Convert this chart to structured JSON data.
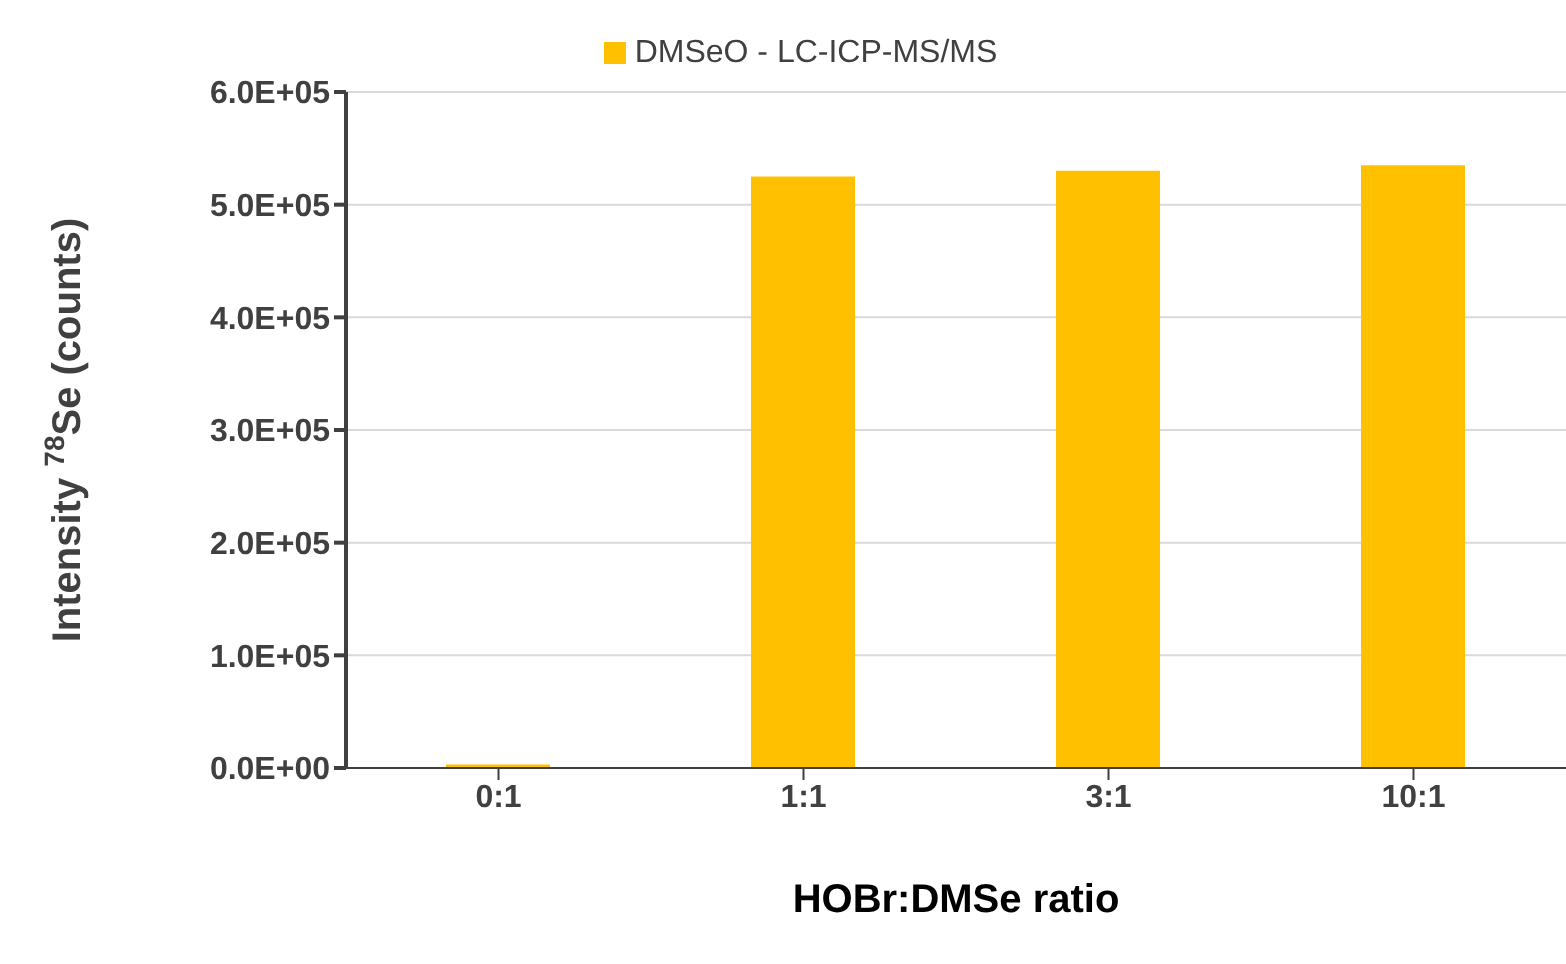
{
  "chart_data": {
    "type": "bar",
    "xlabel": "HOBr:DMSe ratio",
    "ylabel": "Intensity $^{78}$Se (counts)",
    "categories": [
      "0:1",
      "1:1",
      "3:1",
      "10:1"
    ],
    "series": [
      {
        "name": "DMSeO - LC-ICP-MS/MS",
        "color": "#ffc000",
        "values": [
          3000,
          525000,
          530000,
          535000
        ]
      }
    ],
    "ylim": [
      0,
      600000
    ],
    "yticks": [
      {
        "value": 0,
        "label": "0.0E+00"
      },
      {
        "value": 100000,
        "label": "1.0E+05"
      },
      {
        "value": 200000,
        "label": "2.0E+05"
      },
      {
        "value": 300000,
        "label": "3.0E+05"
      },
      {
        "value": 400000,
        "label": "4.0E+05"
      },
      {
        "value": 500000,
        "label": "5.0E+05"
      },
      {
        "value": 600000,
        "label": "6.0E+05"
      }
    ],
    "grid": "y",
    "legend": "top"
  }
}
